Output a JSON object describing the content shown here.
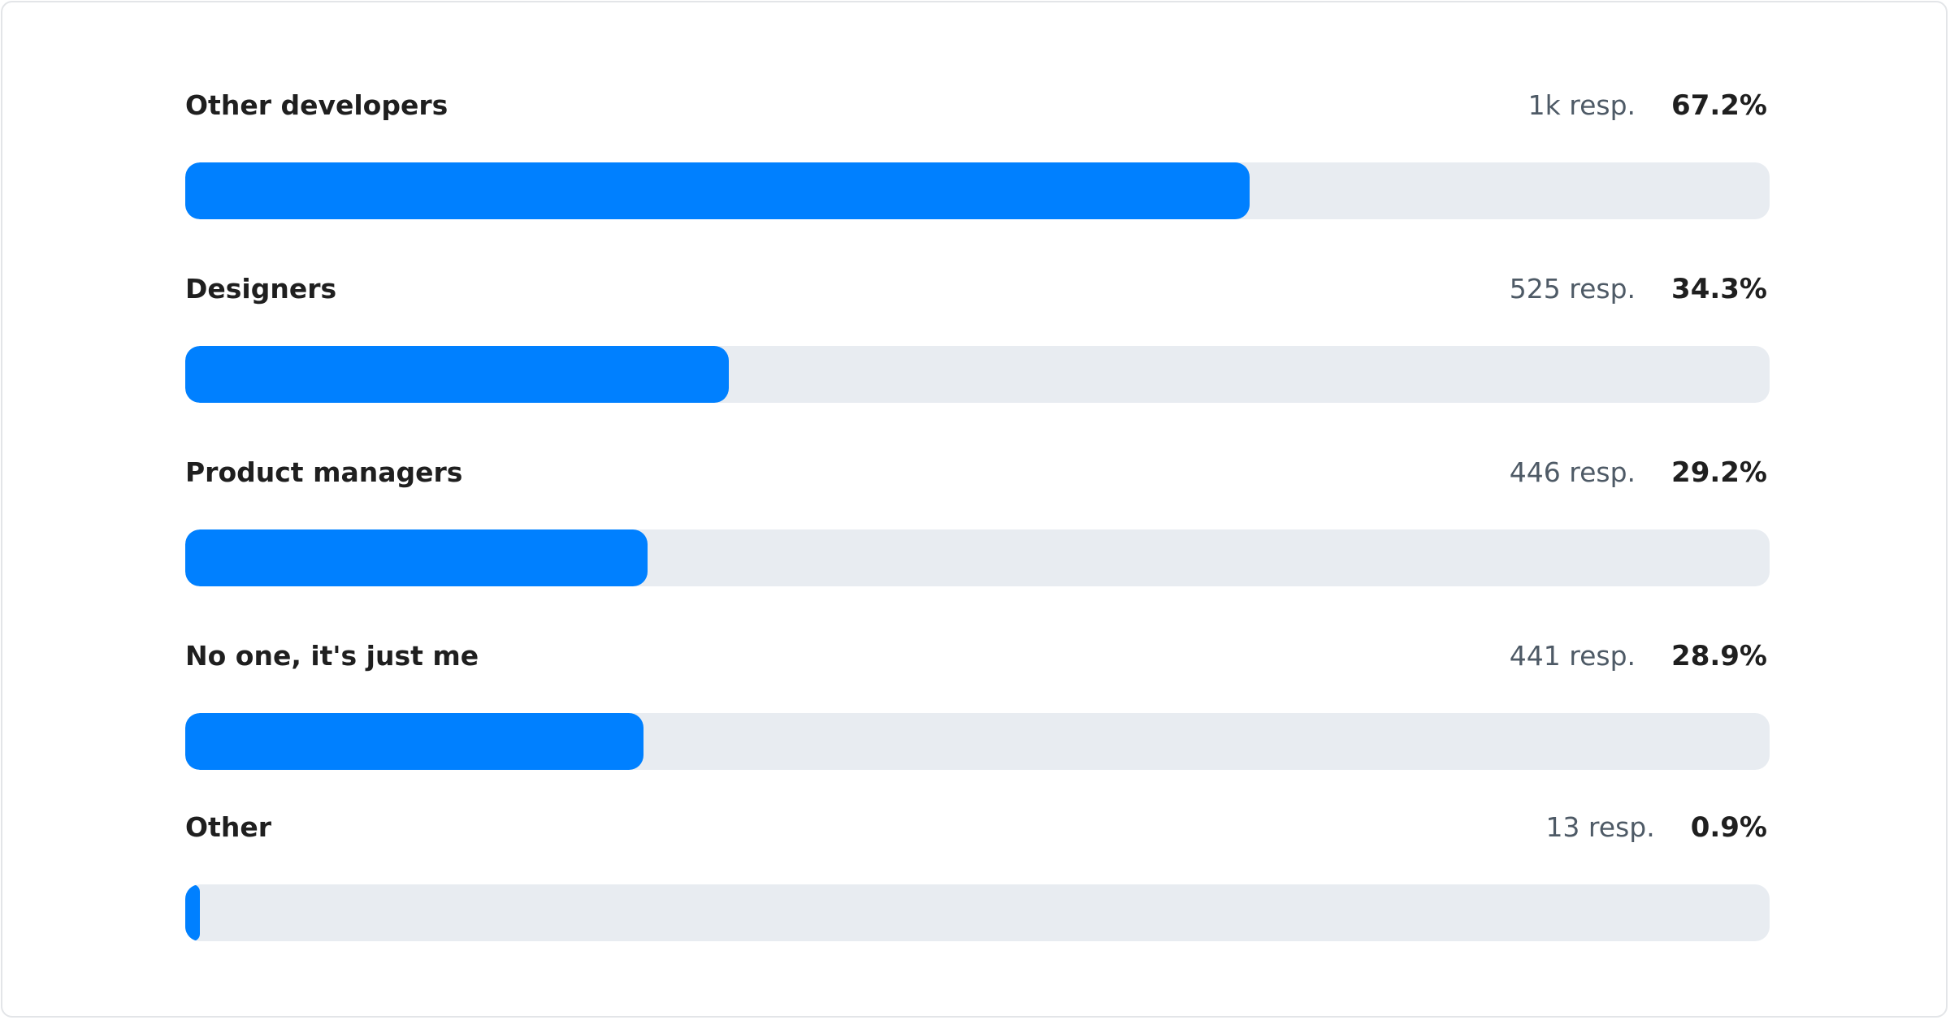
{
  "chart_data": {
    "type": "bar",
    "orientation": "horizontal",
    "categories": [
      "Other developers",
      "Designers",
      "Product managers",
      "No one, it's just me",
      "Other"
    ],
    "values": [
      67.2,
      34.3,
      29.2,
      28.9,
      0.9
    ],
    "responses": [
      "1k resp.",
      "525 resp.",
      "446 resp.",
      "441 resp.",
      "13 resp."
    ],
    "percent_labels": [
      "67.2%",
      "34.3%",
      "29.2%",
      "28.9%",
      "0.9%"
    ],
    "xlim": [
      0,
      100
    ],
    "colors": {
      "fill": "#0080ff",
      "track": "#e8ecf1"
    }
  }
}
